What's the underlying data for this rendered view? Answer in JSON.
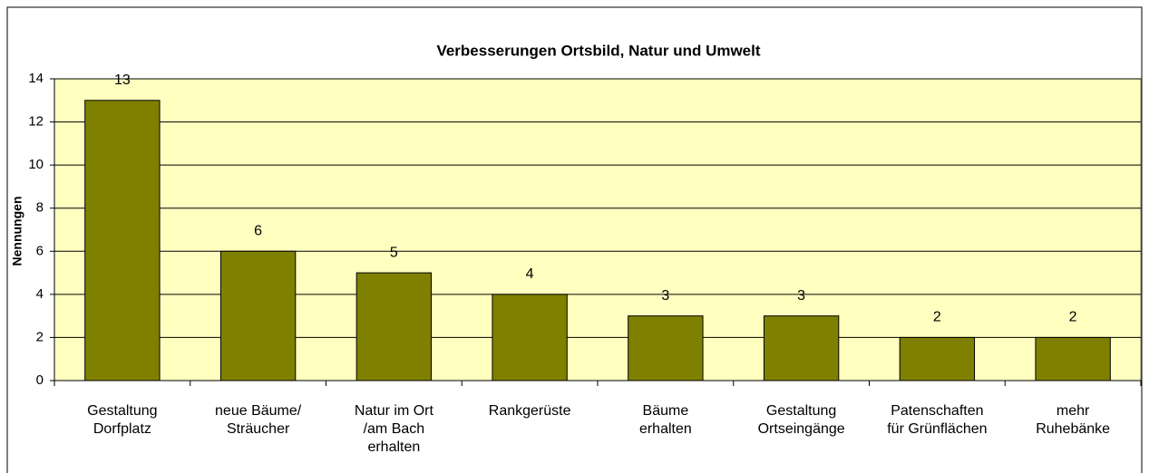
{
  "chart_data": {
    "type": "bar",
    "title": "Verbesserungen Ortsbild, Natur und Umwelt",
    "y_label": "Nennungen",
    "categories": [
      "Gestaltung Dorfplatz",
      "neue Bäume/ Sträucher",
      "Natur im Ort /am Bach erhalten",
      "Rankgerüste",
      "Bäume erhalten",
      "Gestaltung Ortseingänge",
      "Patenschaften für Grünflächen",
      "mehr Ruhebänke"
    ],
    "values": [
      13,
      6,
      5,
      4,
      3,
      3,
      2,
      2
    ],
    "color": "#808000",
    "ylim": [
      0,
      14
    ],
    "yticks": [
      0,
      2,
      4,
      6,
      8,
      10,
      12,
      14
    ],
    "grid": true
  }
}
